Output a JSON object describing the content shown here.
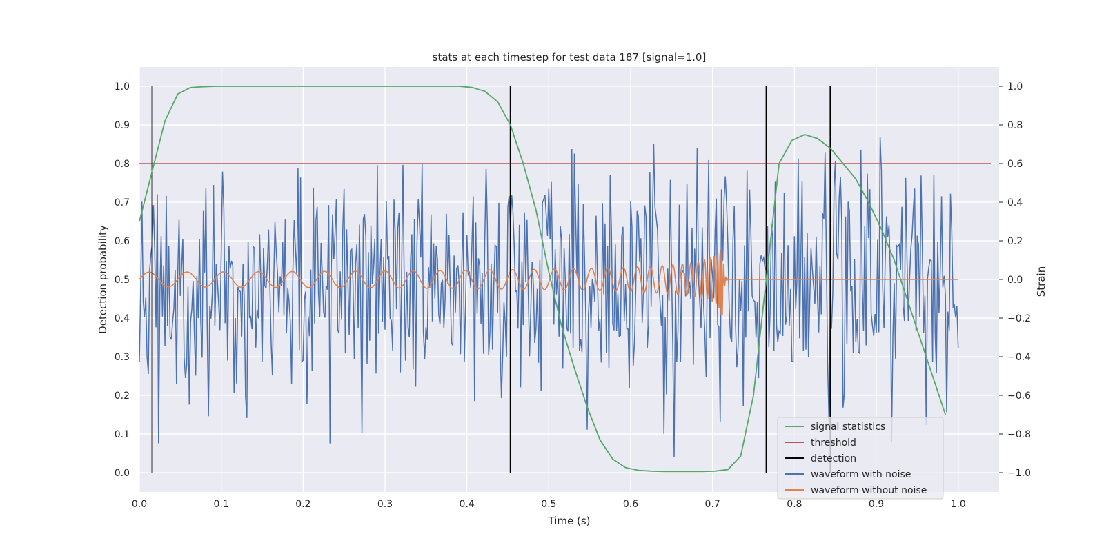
{
  "chart_data": {
    "type": "line",
    "title": "stats at each timestep for test data 187 [signal=1.0]",
    "xlabel": "Time (s)",
    "ylabel": "Detection probability",
    "y2label": "Strain",
    "xlim": [
      0.0,
      1.05
    ],
    "ylim": [
      -0.05,
      1.05
    ],
    "y2lim": [
      -1.1,
      1.1
    ],
    "grid": true,
    "legend_position": "lower-right",
    "x_ticks": [
      "0.0",
      "0.1",
      "0.2",
      "0.3",
      "0.4",
      "0.5",
      "0.6",
      "0.7",
      "0.8",
      "0.9",
      "1.0"
    ],
    "y_ticks": [
      "0.0",
      "0.1",
      "0.2",
      "0.3",
      "0.4",
      "0.5",
      "0.6",
      "0.7",
      "0.8",
      "0.9",
      "1.0"
    ],
    "y2_ticks": [
      "−1.0",
      "−0.8",
      "−0.6",
      "−0.4",
      "−0.2",
      "0.0",
      "0.2",
      "0.4",
      "0.6",
      "0.8",
      "1.0"
    ],
    "colors": {
      "signal_statistics": "#55a868",
      "threshold": "#c44e52",
      "detection": "#000000",
      "waveform_with_noise": "#4c72b0",
      "waveform_without_noise": "#dd8452",
      "plot_background": "#eaeaf2"
    },
    "series": [
      {
        "name": "signal statistics",
        "axis": "left",
        "x": [
          0.0,
          0.0156,
          0.0312,
          0.0469,
          0.0625,
          0.0781,
          0.0938,
          0.1094,
          0.125,
          0.1406,
          0.1563,
          0.1719,
          0.1875,
          0.2031,
          0.2188,
          0.2344,
          0.25,
          0.2656,
          0.2813,
          0.2969,
          0.3125,
          0.3281,
          0.3438,
          0.3594,
          0.375,
          0.3906,
          0.4063,
          0.4219,
          0.4375,
          0.4531,
          0.4688,
          0.4844,
          0.5,
          0.5156,
          0.5313,
          0.5469,
          0.5625,
          0.5781,
          0.5938,
          0.6094,
          0.625,
          0.6406,
          0.6563,
          0.6719,
          0.6875,
          0.7031,
          0.7188,
          0.7344,
          0.75,
          0.7656,
          0.7813,
          0.7969,
          0.8125,
          0.8281,
          0.8438,
          0.8594,
          0.875,
          0.8906,
          0.9063,
          0.9219,
          0.9375,
          0.9531,
          0.9688,
          0.9844
        ],
        "values": [
          0.65,
          0.78,
          0.91,
          0.98,
          0.997,
          0.999,
          1.0,
          1.0,
          1.0,
          1.0,
          1.0,
          1.0,
          1.0,
          1.0,
          1.0,
          1.0,
          1.0,
          1.0,
          1.0,
          1.0,
          1.0,
          1.0,
          1.0,
          1.0,
          1.0,
          1.0,
          0.997,
          0.987,
          0.96,
          0.9,
          0.8,
          0.68,
          0.52,
          0.38,
          0.27,
          0.17,
          0.085,
          0.035,
          0.013,
          0.006,
          0.004,
          0.003,
          0.003,
          0.003,
          0.003,
          0.004,
          0.008,
          0.043,
          0.2,
          0.5,
          0.8,
          0.86,
          0.875,
          0.865,
          0.84,
          0.8,
          0.76,
          0.7,
          0.63,
          0.55,
          0.45,
          0.35,
          0.25,
          0.15
        ]
      },
      {
        "name": "threshold",
        "axis": "left",
        "x": [
          0.0,
          1.04
        ],
        "values": [
          0.8,
          0.8
        ]
      },
      {
        "name": "detection",
        "axis": "left",
        "x": [
          0.0156,
          0.4531,
          0.7656,
          0.8438
        ],
        "y_range": [
          0.0,
          1.0
        ]
      },
      {
        "name": "waveform with noise",
        "axis": "right",
        "description": "dense noisy strain trace, amplitude approx ±1.0 around 0, sampled roughly every 0.0016 s from 0.0 to 1.0 s",
        "x_range": [
          0.0,
          1.0
        ],
        "amplitude": 1.0
      },
      {
        "name": "waveform without noise",
        "axis": "right",
        "description": "chirp oscillation centered on 0, amplitude about 0.04 rising to 0.25 near 0.71 s, then flat 0.0 until 1.0 s",
        "x_range": [
          0.0,
          1.0
        ],
        "merger_time": 0.713,
        "peak_amplitude": 0.25
      }
    ]
  }
}
